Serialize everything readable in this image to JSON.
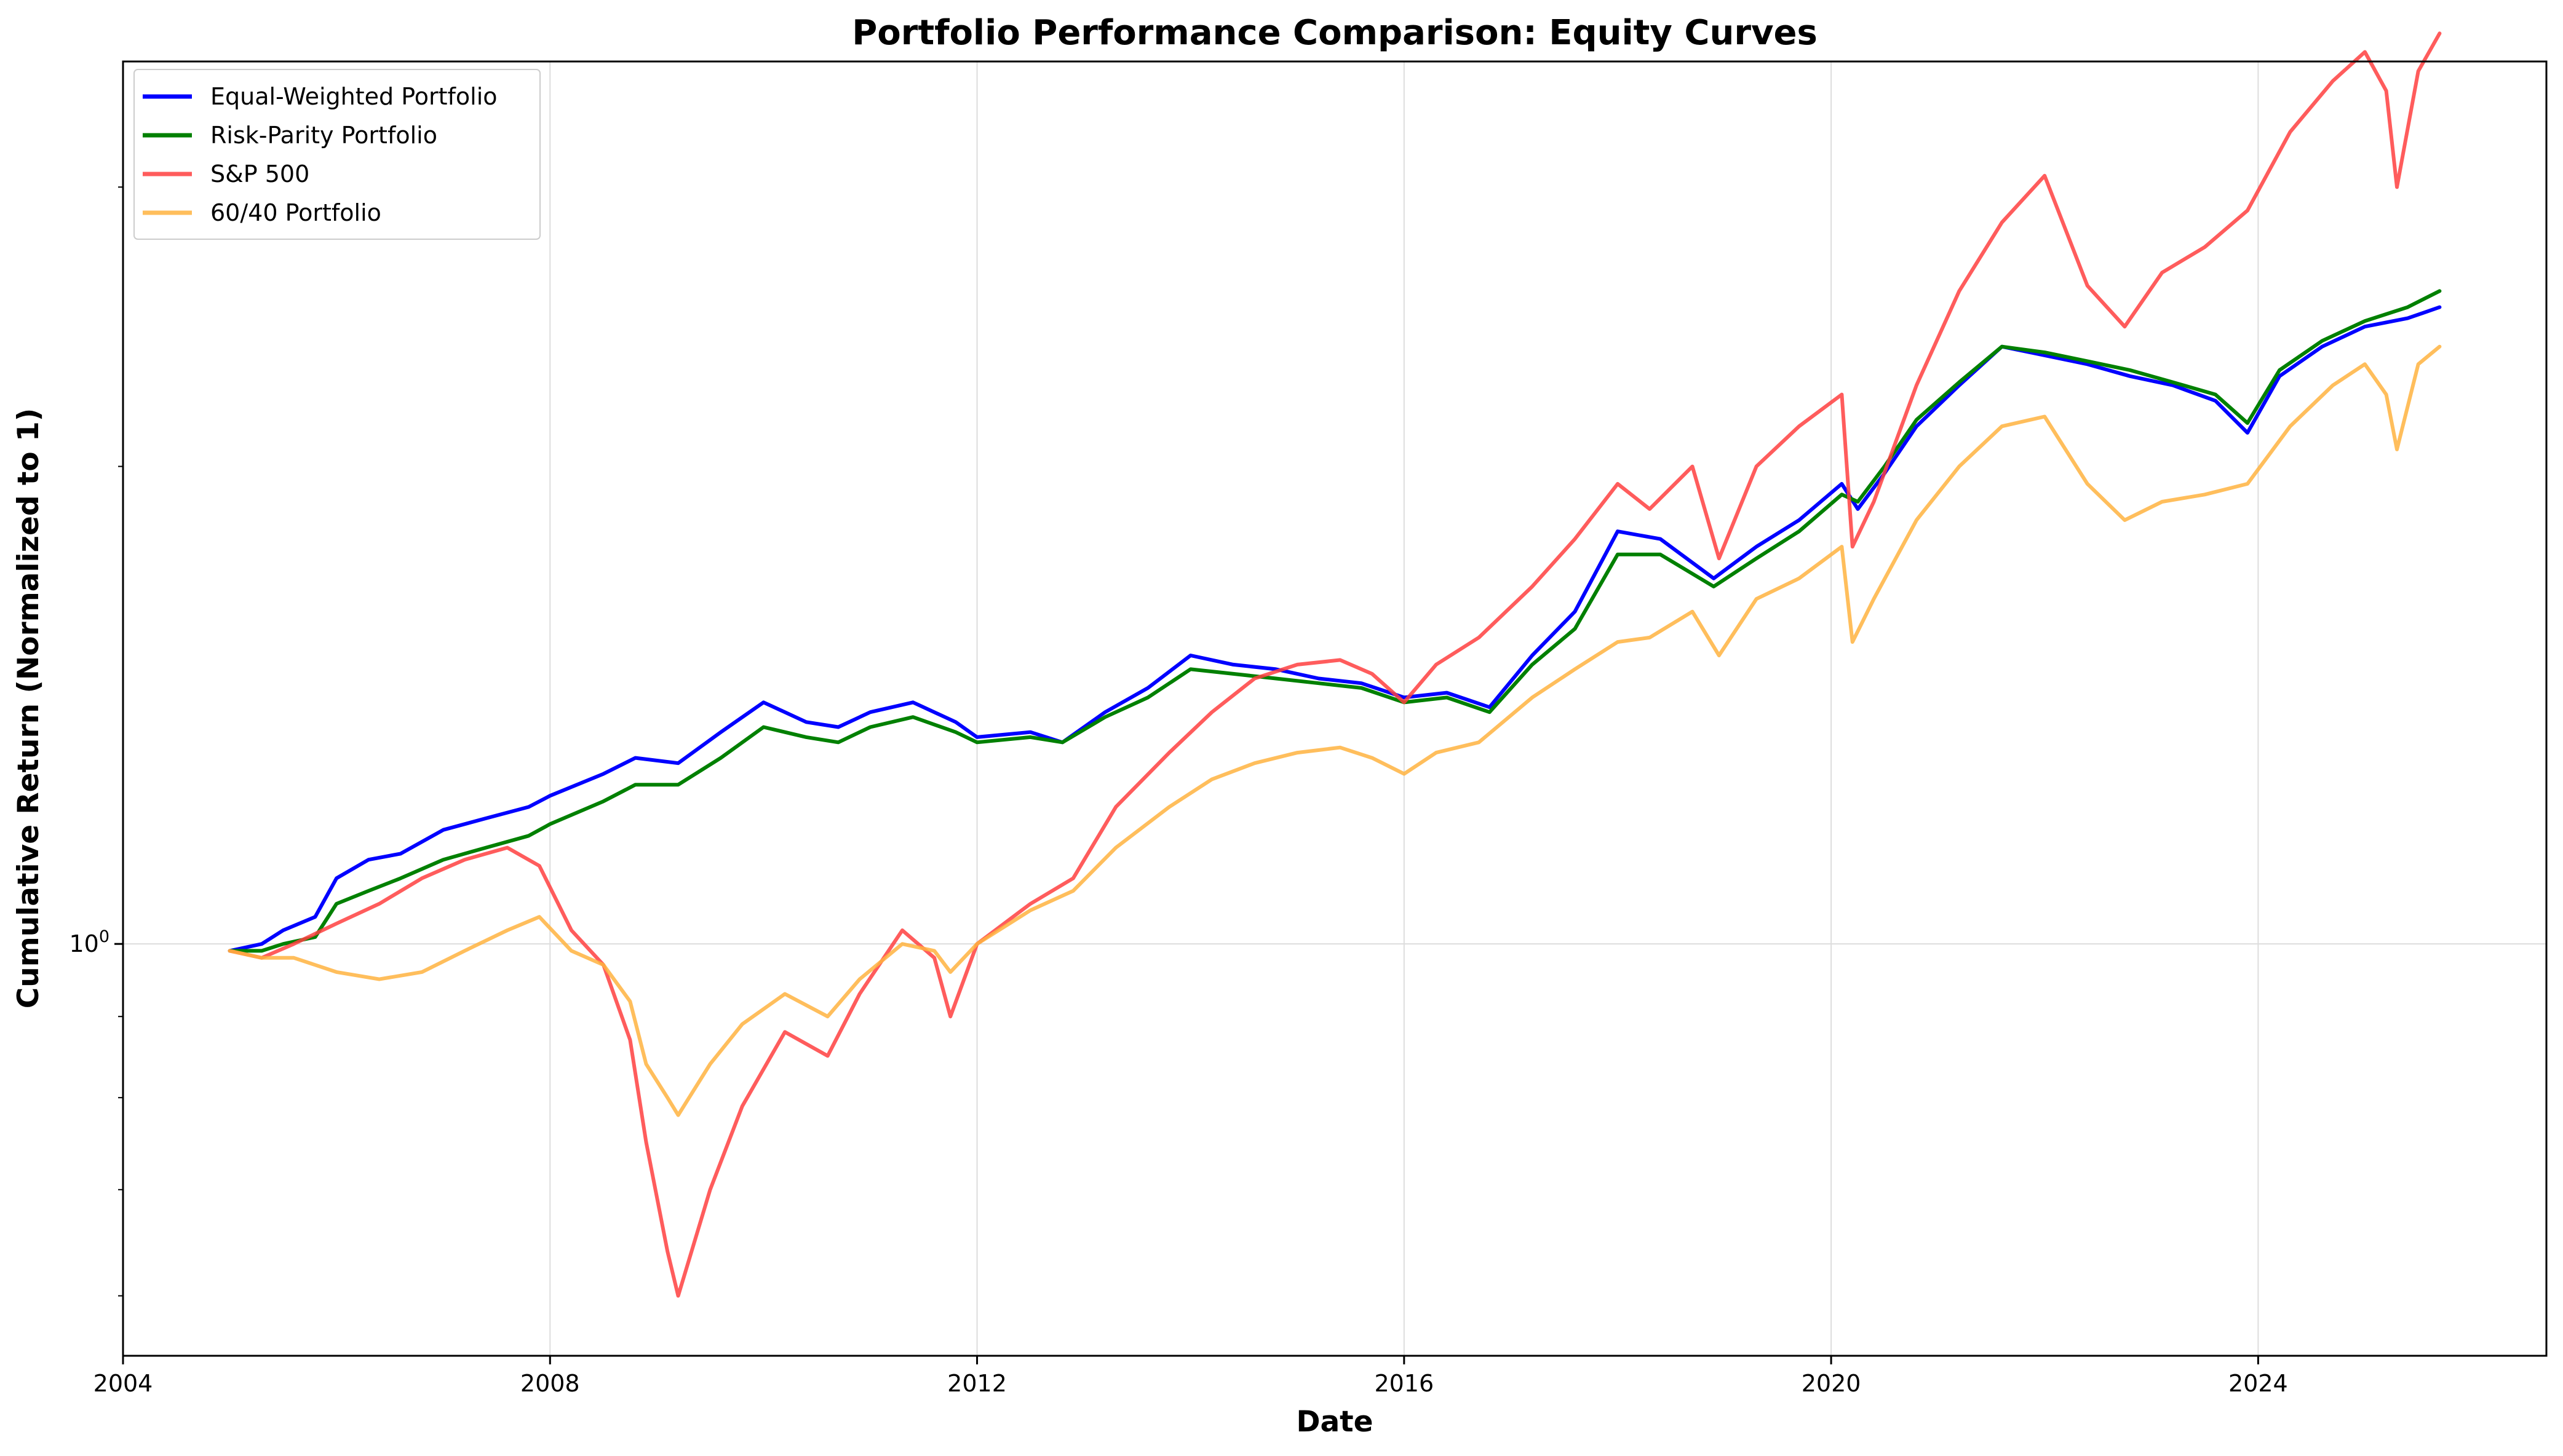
{
  "chart_data": {
    "type": "line",
    "title": "Portfolio Performance Comparison: Equity Curves",
    "xlabel": "Date",
    "ylabel": "Cumulative Return (Normalized to 1)",
    "y_scale": "log",
    "xlim": [
      2004.0,
      2026.7
    ],
    "ylim": [
      0.55,
      3.6
    ],
    "x_ticks": [
      2004,
      2008,
      2012,
      2016,
      2020,
      2024
    ],
    "x_tick_labels": [
      "2004",
      "2008",
      "2012",
      "2016",
      "2020",
      "2024"
    ],
    "y_tick_base": "10",
    "y_tick_exponent": "0",
    "y_major_ticks": [
      1
    ],
    "y_minor_ticks": [
      0.6,
      0.7,
      0.8,
      0.9,
      2,
      3
    ],
    "grid": true,
    "legend_position": "top-left",
    "series": [
      {
        "name": "Equal-Weighted Portfolio",
        "color": "#0000ff",
        "x": [
          2005.0,
          2005.3,
          2005.5,
          2005.8,
          2006.0,
          2006.3,
          2006.6,
          2007.0,
          2007.4,
          2007.8,
          2008.0,
          2008.5,
          2008.8,
          2009.2,
          2009.6,
          2010.0,
          2010.4,
          2010.7,
          2011.0,
          2011.4,
          2011.8,
          2012.0,
          2012.5,
          2012.8,
          2013.2,
          2013.6,
          2014.0,
          2014.4,
          2014.8,
          2015.2,
          2015.6,
          2016.0,
          2016.4,
          2016.8,
          2017.2,
          2017.6,
          2018.0,
          2018.4,
          2018.9,
          2019.3,
          2019.7,
          2020.1,
          2020.25,
          2020.5,
          2020.8,
          2021.2,
          2021.6,
          2022.0,
          2022.4,
          2022.8,
          2023.2,
          2023.6,
          2023.9,
          2024.2,
          2024.6,
          2025.0,
          2025.4,
          2025.7
        ],
        "y": [
          0.99,
          1.0,
          1.02,
          1.04,
          1.1,
          1.13,
          1.14,
          1.18,
          1.2,
          1.22,
          1.24,
          1.28,
          1.31,
          1.3,
          1.36,
          1.42,
          1.38,
          1.37,
          1.4,
          1.42,
          1.38,
          1.35,
          1.36,
          1.34,
          1.4,
          1.45,
          1.52,
          1.5,
          1.49,
          1.47,
          1.46,
          1.43,
          1.44,
          1.41,
          1.52,
          1.62,
          1.82,
          1.8,
          1.7,
          1.78,
          1.85,
          1.95,
          1.88,
          1.98,
          2.12,
          2.25,
          2.38,
          2.35,
          2.32,
          2.28,
          2.25,
          2.2,
          2.1,
          2.28,
          2.38,
          2.45,
          2.48,
          2.52
        ]
      },
      {
        "name": "Risk-Parity Portfolio",
        "color": "#008000",
        "x": [
          2005.0,
          2005.3,
          2005.5,
          2005.8,
          2006.0,
          2006.3,
          2006.6,
          2007.0,
          2007.4,
          2007.8,
          2008.0,
          2008.5,
          2008.8,
          2009.2,
          2009.6,
          2010.0,
          2010.4,
          2010.7,
          2011.0,
          2011.4,
          2011.8,
          2012.0,
          2012.5,
          2012.8,
          2013.2,
          2013.6,
          2014.0,
          2014.4,
          2014.8,
          2015.2,
          2015.6,
          2016.0,
          2016.4,
          2016.8,
          2017.2,
          2017.6,
          2018.0,
          2018.4,
          2018.9,
          2019.3,
          2019.7,
          2020.1,
          2020.25,
          2020.5,
          2020.8,
          2021.2,
          2021.6,
          2022.0,
          2022.4,
          2022.8,
          2023.2,
          2023.6,
          2023.9,
          2024.2,
          2024.6,
          2025.0,
          2025.4,
          2025.7
        ],
        "y": [
          0.99,
          0.99,
          1.0,
          1.01,
          1.06,
          1.08,
          1.1,
          1.13,
          1.15,
          1.17,
          1.19,
          1.23,
          1.26,
          1.26,
          1.31,
          1.37,
          1.35,
          1.34,
          1.37,
          1.39,
          1.36,
          1.34,
          1.35,
          1.34,
          1.39,
          1.43,
          1.49,
          1.48,
          1.47,
          1.46,
          1.45,
          1.42,
          1.43,
          1.4,
          1.5,
          1.58,
          1.76,
          1.76,
          1.68,
          1.75,
          1.82,
          1.92,
          1.9,
          2.0,
          2.14,
          2.26,
          2.38,
          2.36,
          2.33,
          2.3,
          2.26,
          2.22,
          2.13,
          2.3,
          2.4,
          2.47,
          2.52,
          2.58
        ]
      },
      {
        "name": "S&P 500",
        "color": "#ff4040",
        "x": [
          2005.0,
          2005.3,
          2005.6,
          2006.0,
          2006.4,
          2006.8,
          2007.2,
          2007.6,
          2007.9,
          2008.2,
          2008.5,
          2008.75,
          2008.9,
          2009.1,
          2009.2,
          2009.5,
          2009.8,
          2010.2,
          2010.6,
          2010.9,
          2011.3,
          2011.6,
          2011.75,
          2012.0,
          2012.5,
          2012.9,
          2013.3,
          2013.8,
          2014.2,
          2014.6,
          2015.0,
          2015.4,
          2015.7,
          2016.0,
          2016.3,
          2016.7,
          2017.2,
          2017.6,
          2018.0,
          2018.3,
          2018.7,
          2018.95,
          2019.3,
          2019.7,
          2020.1,
          2020.2,
          2020.4,
          2020.8,
          2021.2,
          2021.6,
          2022.0,
          2022.4,
          2022.75,
          2023.1,
          2023.5,
          2023.9,
          2024.3,
          2024.7,
          2025.0,
          2025.2,
          2025.3,
          2025.5,
          2025.7
        ],
        "y": [
          0.99,
          0.98,
          1.0,
          1.03,
          1.06,
          1.1,
          1.13,
          1.15,
          1.12,
          1.02,
          0.97,
          0.87,
          0.75,
          0.64,
          0.6,
          0.7,
          0.79,
          0.88,
          0.85,
          0.93,
          1.02,
          0.98,
          0.9,
          1.0,
          1.06,
          1.1,
          1.22,
          1.32,
          1.4,
          1.47,
          1.5,
          1.51,
          1.48,
          1.42,
          1.5,
          1.56,
          1.68,
          1.8,
          1.95,
          1.88,
          2.0,
          1.75,
          2.0,
          2.12,
          2.22,
          1.78,
          1.9,
          2.25,
          2.58,
          2.85,
          3.05,
          2.6,
          2.45,
          2.65,
          2.75,
          2.9,
          3.25,
          3.5,
          3.65,
          3.45,
          3.0,
          3.55,
          3.75
        ]
      },
      {
        "name": "60/40 Portfolio",
        "color": "#ffb33f",
        "x": [
          2005.0,
          2005.3,
          2005.6,
          2006.0,
          2006.4,
          2006.8,
          2007.2,
          2007.6,
          2007.9,
          2008.2,
          2008.5,
          2008.75,
          2008.9,
          2009.1,
          2009.2,
          2009.5,
          2009.8,
          2010.2,
          2010.6,
          2010.9,
          2011.3,
          2011.6,
          2011.75,
          2012.0,
          2012.5,
          2012.9,
          2013.3,
          2013.8,
          2014.2,
          2014.6,
          2015.0,
          2015.4,
          2015.7,
          2016.0,
          2016.3,
          2016.7,
          2017.2,
          2017.6,
          2018.0,
          2018.3,
          2018.7,
          2018.95,
          2019.3,
          2019.7,
          2020.1,
          2020.2,
          2020.4,
          2020.8,
          2021.2,
          2021.6,
          2022.0,
          2022.4,
          2022.75,
          2023.1,
          2023.5,
          2023.9,
          2024.3,
          2024.7,
          2025.0,
          2025.2,
          2025.3,
          2025.5,
          2025.7
        ],
        "y": [
          0.99,
          0.98,
          0.98,
          0.96,
          0.95,
          0.96,
          0.99,
          1.02,
          1.04,
          0.99,
          0.97,
          0.92,
          0.84,
          0.8,
          0.78,
          0.84,
          0.89,
          0.93,
          0.9,
          0.95,
          1.0,
          0.99,
          0.96,
          1.0,
          1.05,
          1.08,
          1.15,
          1.22,
          1.27,
          1.3,
          1.32,
          1.33,
          1.31,
          1.28,
          1.32,
          1.34,
          1.43,
          1.49,
          1.55,
          1.56,
          1.62,
          1.52,
          1.65,
          1.7,
          1.78,
          1.55,
          1.65,
          1.85,
          2.0,
          2.12,
          2.15,
          1.95,
          1.85,
          1.9,
          1.92,
          1.95,
          2.12,
          2.25,
          2.32,
          2.22,
          2.05,
          2.32,
          2.38
        ]
      }
    ]
  }
}
